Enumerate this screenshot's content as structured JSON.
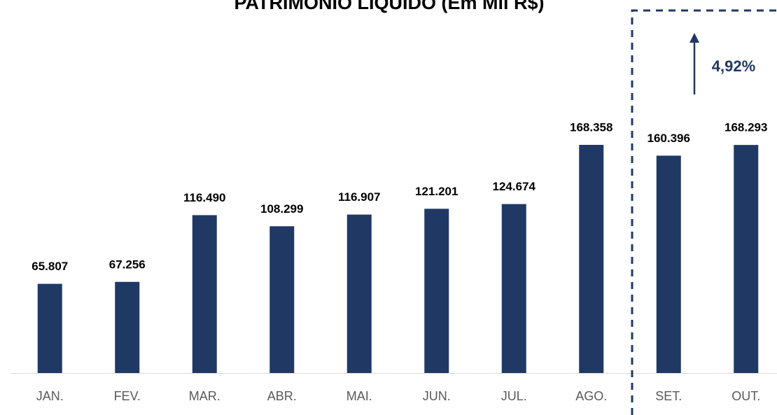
{
  "chart_data": {
    "type": "bar",
    "title": "PATRIMÔNIO LÍQUIDO (Em Mil R$)",
    "categories": [
      "JAN.",
      "FEV.",
      "MAR.",
      "ABR.",
      "MAI.",
      "JUN.",
      "JUL.",
      "AGO.",
      "SET.",
      "OUT."
    ],
    "values": [
      65807,
      67256,
      116490,
      108299,
      116907,
      121201,
      124674,
      168358,
      160396,
      168293
    ],
    "value_labels": [
      "65.807",
      "67.256",
      "116.490",
      "108.299",
      "116.907",
      "121.201",
      "124.674",
      "168.358",
      "160.396",
      "168.293"
    ],
    "color": "#203864",
    "annotation": "4,92%"
  }
}
